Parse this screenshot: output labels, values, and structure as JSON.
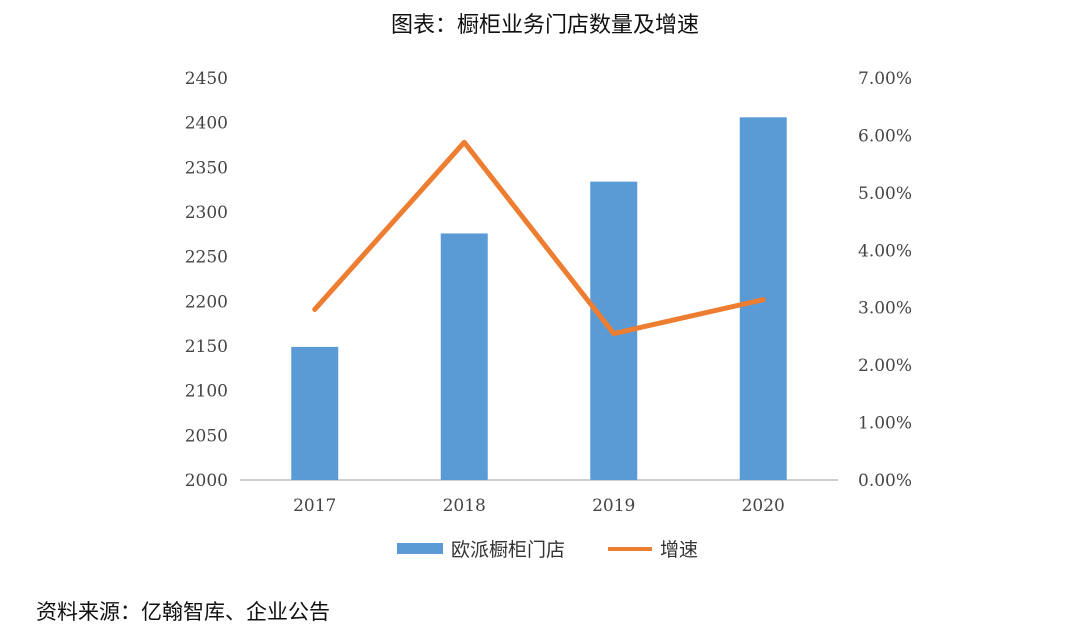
{
  "chart_data": {
    "type": "bar",
    "title": "图表：橱柜业务门店数量及增速",
    "categories": [
      "2017",
      "2018",
      "2019",
      "2020"
    ],
    "series": [
      {
        "name": "欧派橱柜门店",
        "type": "bar",
        "axis": "left",
        "color": "#5B9BD5",
        "values": [
          2149,
          2276,
          2334,
          2406
        ]
      },
      {
        "name": "增速",
        "type": "line",
        "axis": "right",
        "color": "#ED7D31",
        "values": [
          2.97,
          5.88,
          2.55,
          3.14
        ]
      }
    ],
    "y_left": {
      "min": 2000,
      "max": 2450,
      "step": 50,
      "tick_labels": [
        "2000",
        "2050",
        "2100",
        "2150",
        "2200",
        "2250",
        "2300",
        "2350",
        "2400",
        "2450"
      ]
    },
    "y_right": {
      "min": 0,
      "max": 7,
      "step": 1,
      "unit": "%",
      "tick_labels": [
        "0.00%",
        "1.00%",
        "2.00%",
        "3.00%",
        "4.00%",
        "5.00%",
        "6.00%",
        "7.00%"
      ]
    },
    "grid": false,
    "legend_position": "bottom"
  },
  "source_note": "资料来源：亿翰智库、企业公告"
}
